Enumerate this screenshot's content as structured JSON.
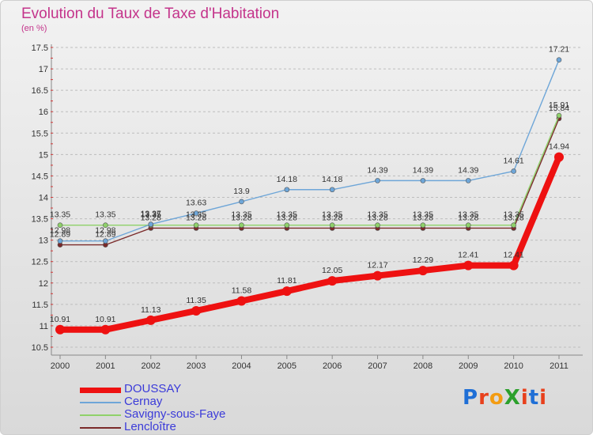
{
  "title": "Evolution du Taux de Taxe d'Habitation",
  "unit_label": "(en %)",
  "logo": {
    "text": "ProXiti",
    "letter_colors": [
      "#1f6fd6",
      "#e8401c",
      "#f39c12",
      "#2ca02c",
      "#e8401c",
      "#1f6fd6",
      "#e8401c"
    ]
  },
  "colors": {
    "label_text": "#333333",
    "grid": "#bdbdbd"
  },
  "chart_data": {
    "type": "line",
    "title": "Evolution du Taux de Taxe d'Habitation",
    "ylabel": "(en %)",
    "xlabel": "",
    "x": [
      "2000",
      "2001",
      "2002",
      "2003",
      "2004",
      "2005",
      "2006",
      "2007",
      "2008",
      "2009",
      "2010",
      "2011"
    ],
    "ylim": [
      10.5,
      17.5
    ],
    "yticks": [
      10.5,
      11,
      11.5,
      12,
      12.5,
      13,
      13.5,
      14,
      14.5,
      15,
      15.5,
      16,
      16.5,
      17,
      17.5
    ],
    "ytick_labels": [
      "10.5",
      "11",
      "11.5",
      "12",
      "12.5",
      "13",
      "13.5",
      "14",
      "14.5",
      "15",
      "15.5",
      "16",
      "16.5",
      "17",
      "17.5"
    ],
    "grid": "horizontal dashed",
    "legend_position": "bottom-left",
    "series": [
      {
        "name": "DOUSSAY",
        "color": "#ee1111",
        "values": [
          10.91,
          10.91,
          11.13,
          11.35,
          11.58,
          11.81,
          12.05,
          12.17,
          12.29,
          12.41,
          12.41,
          14.94
        ],
        "labels": [
          "10.91",
          "10.91",
          "11.13",
          "11.35",
          "11.58",
          "11.81",
          "12.05",
          "12.17",
          "12.29",
          "12.41",
          "12.41",
          "14.94"
        ]
      },
      {
        "name": "Cernay",
        "color": "#6ea6d8",
        "values": [
          12.98,
          12.98,
          13.37,
          13.63,
          13.9,
          14.18,
          14.18,
          14.39,
          14.39,
          14.39,
          14.61,
          17.21
        ],
        "labels": [
          "12.98",
          "12.98",
          "13.37",
          "13.63",
          "13.9",
          "14.18",
          "14.18",
          "14.39",
          "14.39",
          "14.39",
          "14.61",
          "17.21"
        ]
      },
      {
        "name": "Savigny-sous-Faye",
        "color": "#8fd16a",
        "values": [
          13.35,
          13.35,
          13.35,
          13.35,
          13.35,
          13.35,
          13.35,
          13.35,
          13.35,
          13.35,
          13.35,
          15.91
        ],
        "labels": [
          "13.35",
          "13.35",
          "13.35",
          "13.35",
          "13.35",
          "13.35",
          "13.35",
          "13.35",
          "13.35",
          "13.35",
          "13.35",
          "15.91"
        ]
      },
      {
        "name": "Lencloître",
        "color": "#7a2a2a",
        "values": [
          12.89,
          12.89,
          13.28,
          13.28,
          13.28,
          13.28,
          13.28,
          13.28,
          13.28,
          13.28,
          13.28,
          15.84
        ],
        "labels": [
          "12.89",
          "12.89",
          "13.28",
          "13.28",
          "13.28",
          "13.28",
          "13.28",
          "13.28",
          "13.28",
          "13.28",
          "13.28",
          "15.84"
        ]
      }
    ]
  }
}
